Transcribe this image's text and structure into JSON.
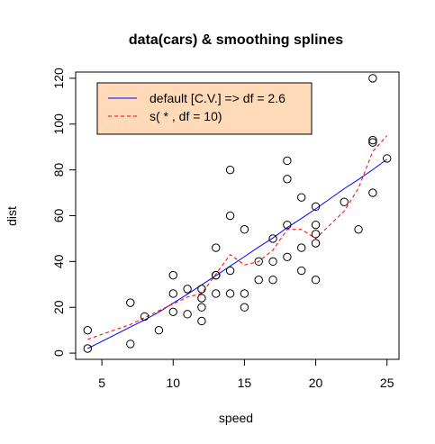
{
  "chart_data": {
    "type": "scatter",
    "title": "data(cars)  &  smoothing splines",
    "xlabel": "speed",
    "ylabel": "dist",
    "xlim": [
      3.16,
      25.84
    ],
    "ylim": [
      -2.72,
      122.72
    ],
    "xticks": [
      5,
      10,
      15,
      20,
      25
    ],
    "yticks": [
      0,
      20,
      40,
      60,
      80,
      100,
      120
    ],
    "grid": false,
    "legend_position": "top-left",
    "legend_fill": "#FFDAB9",
    "points": {
      "x": [
        4,
        4,
        7,
        7,
        8,
        9,
        10,
        10,
        10,
        11,
        11,
        12,
        12,
        12,
        12,
        13,
        13,
        13,
        13,
        14,
        14,
        14,
        14,
        15,
        15,
        15,
        16,
        16,
        17,
        17,
        17,
        18,
        18,
        18,
        18,
        19,
        19,
        19,
        20,
        20,
        20,
        20,
        20,
        22,
        23,
        24,
        24,
        24,
        24,
        25
      ],
      "y": [
        2,
        10,
        4,
        22,
        16,
        10,
        18,
        26,
        34,
        17,
        28,
        14,
        20,
        24,
        28,
        26,
        34,
        34,
        46,
        26,
        36,
        60,
        80,
        20,
        26,
        54,
        32,
        40,
        32,
        40,
        50,
        42,
        56,
        76,
        84,
        36,
        46,
        68,
        32,
        48,
        52,
        56,
        64,
        66,
        54,
        70,
        92,
        93,
        120,
        85
      ]
    },
    "series": [
      {
        "name": "default [C.V.] => df = 2.6",
        "color": "#0000FF",
        "dash": "solid",
        "x": [
          4,
          7,
          8,
          9,
          10,
          11,
          12,
          13,
          14,
          15,
          16,
          17,
          18,
          19,
          20,
          22,
          23,
          24,
          25
        ],
        "y": [
          2.0,
          11.4,
          14.5,
          17.9,
          21.8,
          25.7,
          29.8,
          33.8,
          38.0,
          42.1,
          46.3,
          50.3,
          54.8,
          58.8,
          63.0,
          71.8,
          75.8,
          80.1,
          84.6
        ]
      },
      {
        "name": "s( * , df = 10)",
        "color": "#FF0000",
        "dash": "dashed",
        "x": [
          4,
          7,
          8,
          9,
          10,
          11,
          12,
          13,
          14,
          15,
          16,
          17,
          18,
          19,
          20,
          22,
          23,
          24,
          25
        ],
        "y": [
          6.0,
          12.5,
          15.5,
          18.5,
          21.5,
          24.5,
          26.0,
          34.5,
          43.0,
          38.5,
          40.0,
          45.0,
          54.0,
          54.0,
          50.0,
          62.0,
          72.0,
          88.0,
          95.0
        ]
      }
    ]
  }
}
